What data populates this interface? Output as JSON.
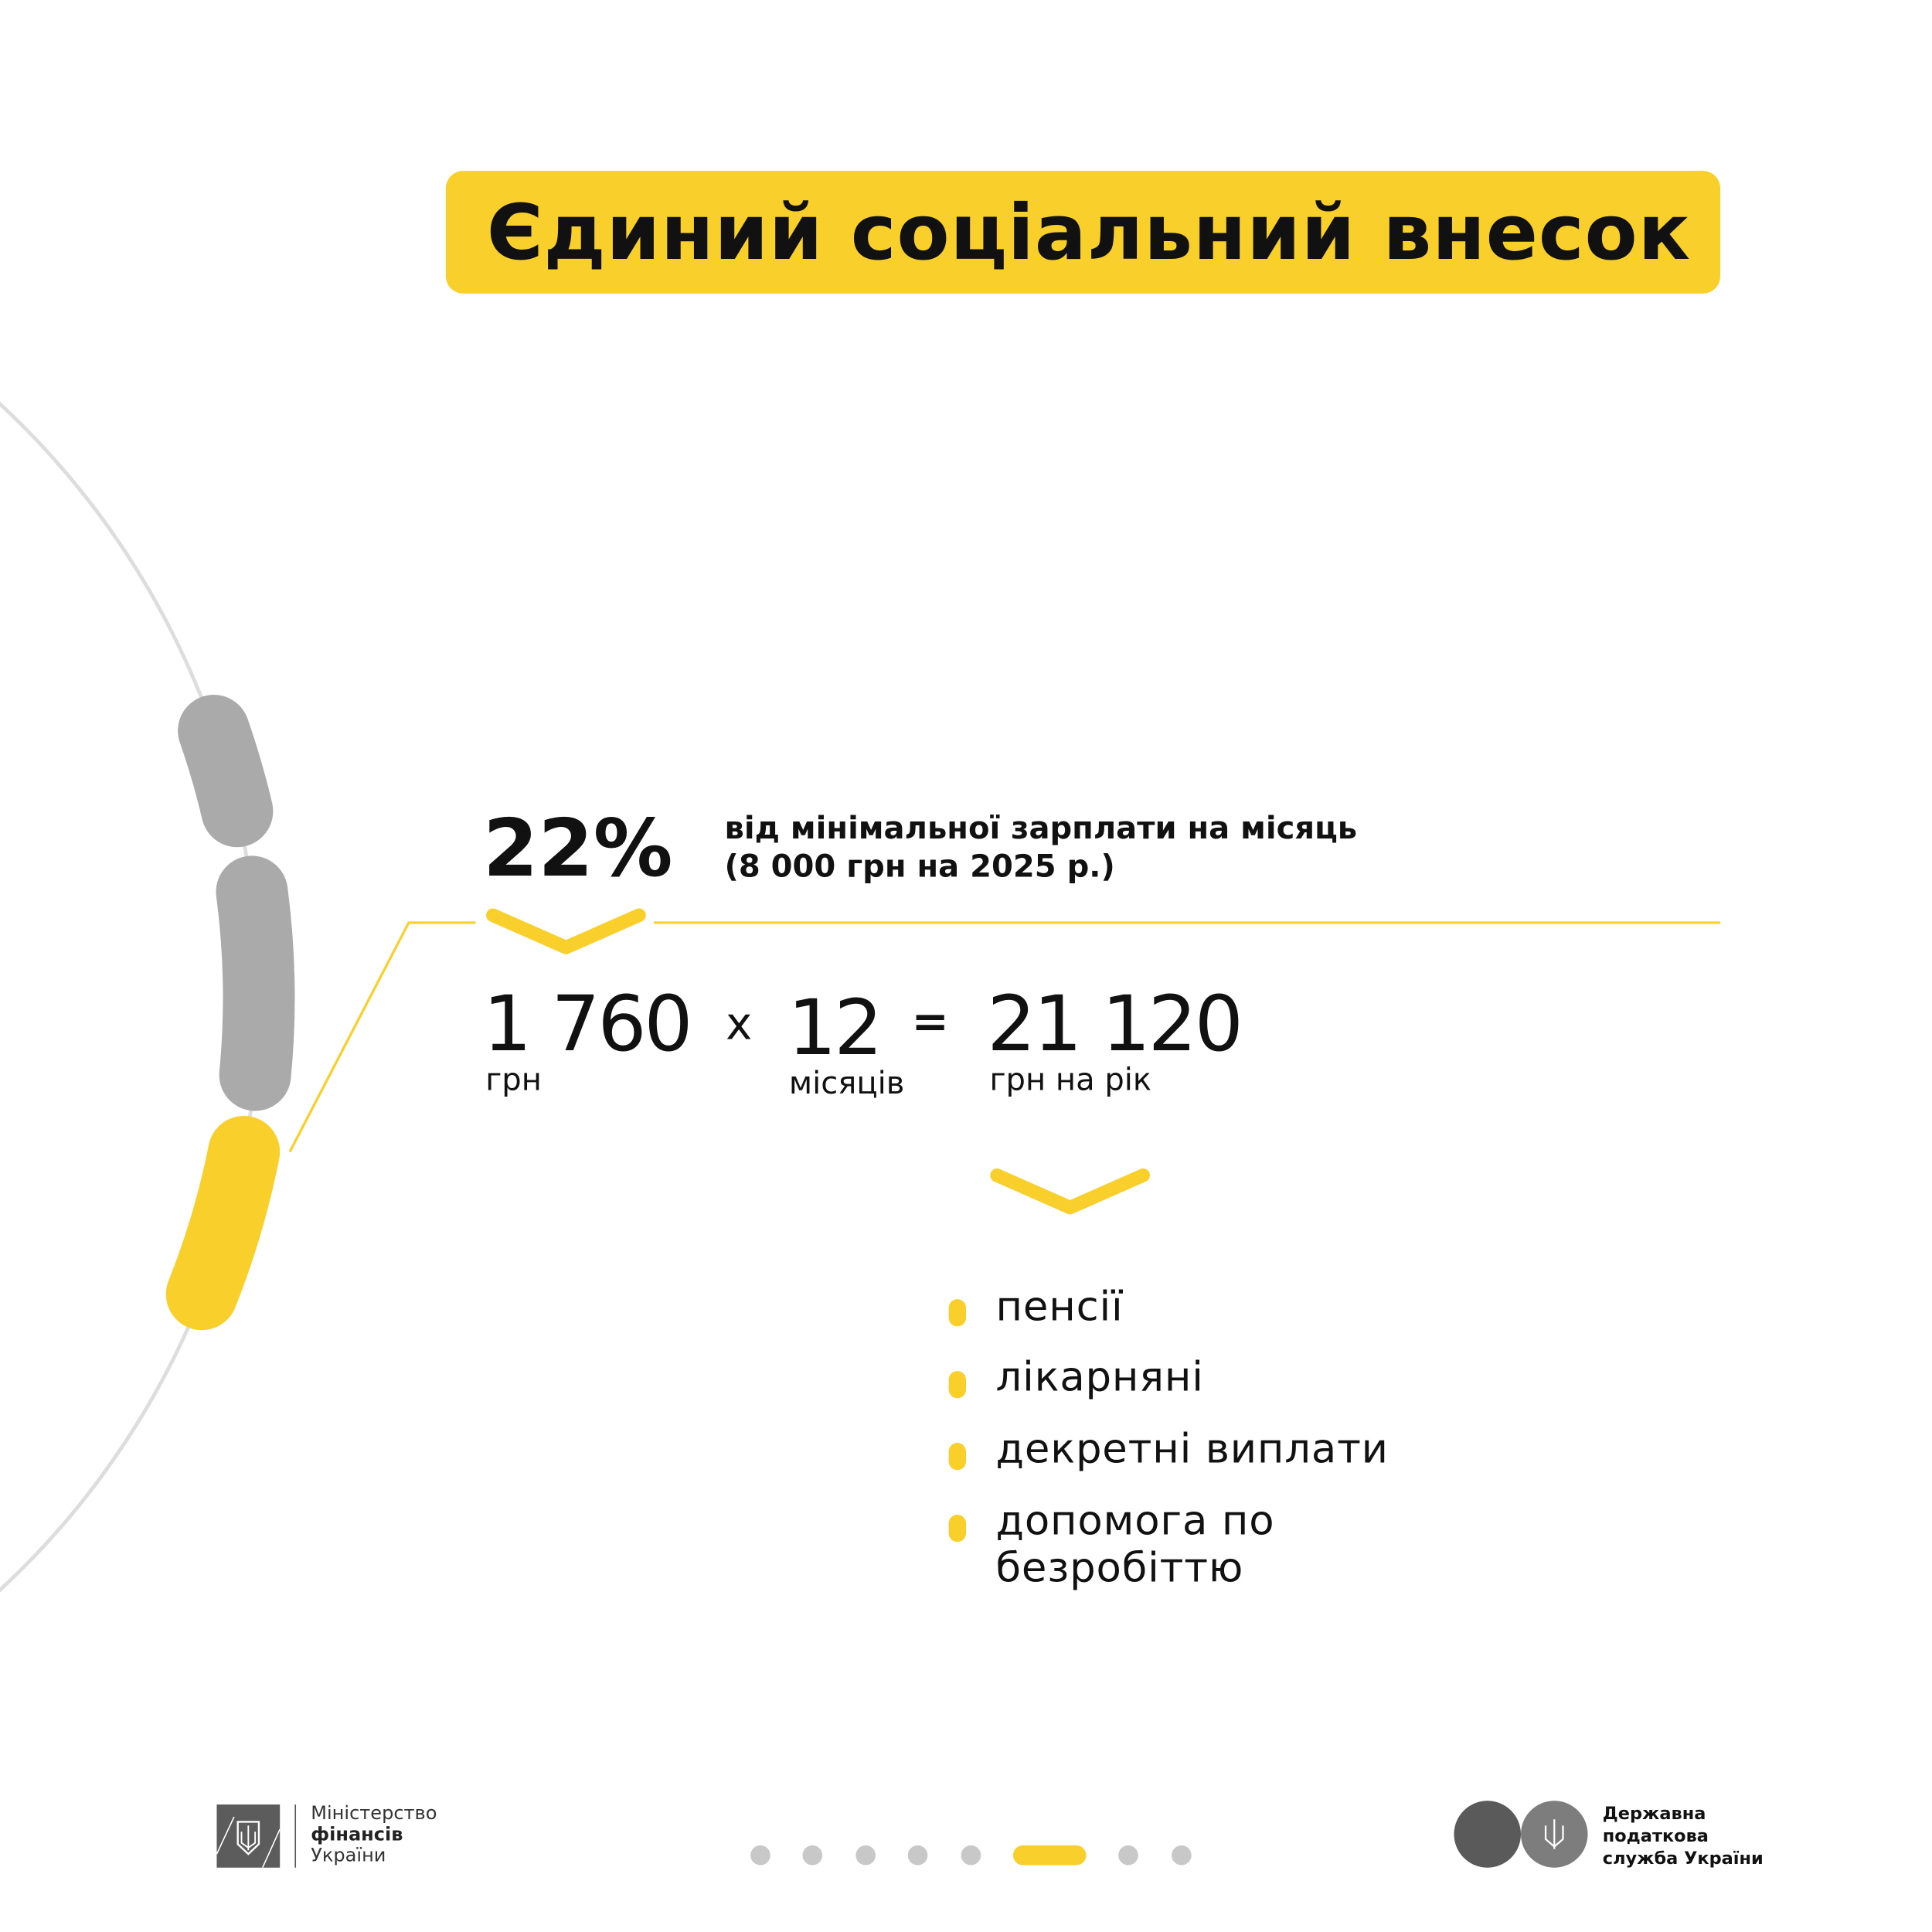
{
  "title": "Єдиний соціальний внесок",
  "rate": {
    "percent": "22%",
    "description_line1": "від мінімальної зарплати на місяць",
    "description_line2": "(8 000 грн на 2025 р.)"
  },
  "equation": {
    "monthly_amount": "1 760",
    "monthly_unit": "грн",
    "multiply_sign": "x",
    "months": "12",
    "months_unit": "місяців",
    "equals_sign": "=",
    "yearly_amount": "21 120",
    "yearly_unit": "грн на рік"
  },
  "benefits": [
    "пенсії",
    "лікарняні",
    "декретні виплати",
    "допомога по",
    "безробіттю"
  ],
  "pagination": {
    "total": 8,
    "active_index": 5
  },
  "footer": {
    "ministry_line1": "Міністерство",
    "ministry_line2": "фінансів",
    "ministry_line3": "України",
    "tax_line1": "Державна",
    "tax_line2": "податкова",
    "tax_line3": "служба України"
  },
  "colors": {
    "accent": "#F9CF2B",
    "gray": "#AAAAAA",
    "arc": "#DDDDDD"
  }
}
